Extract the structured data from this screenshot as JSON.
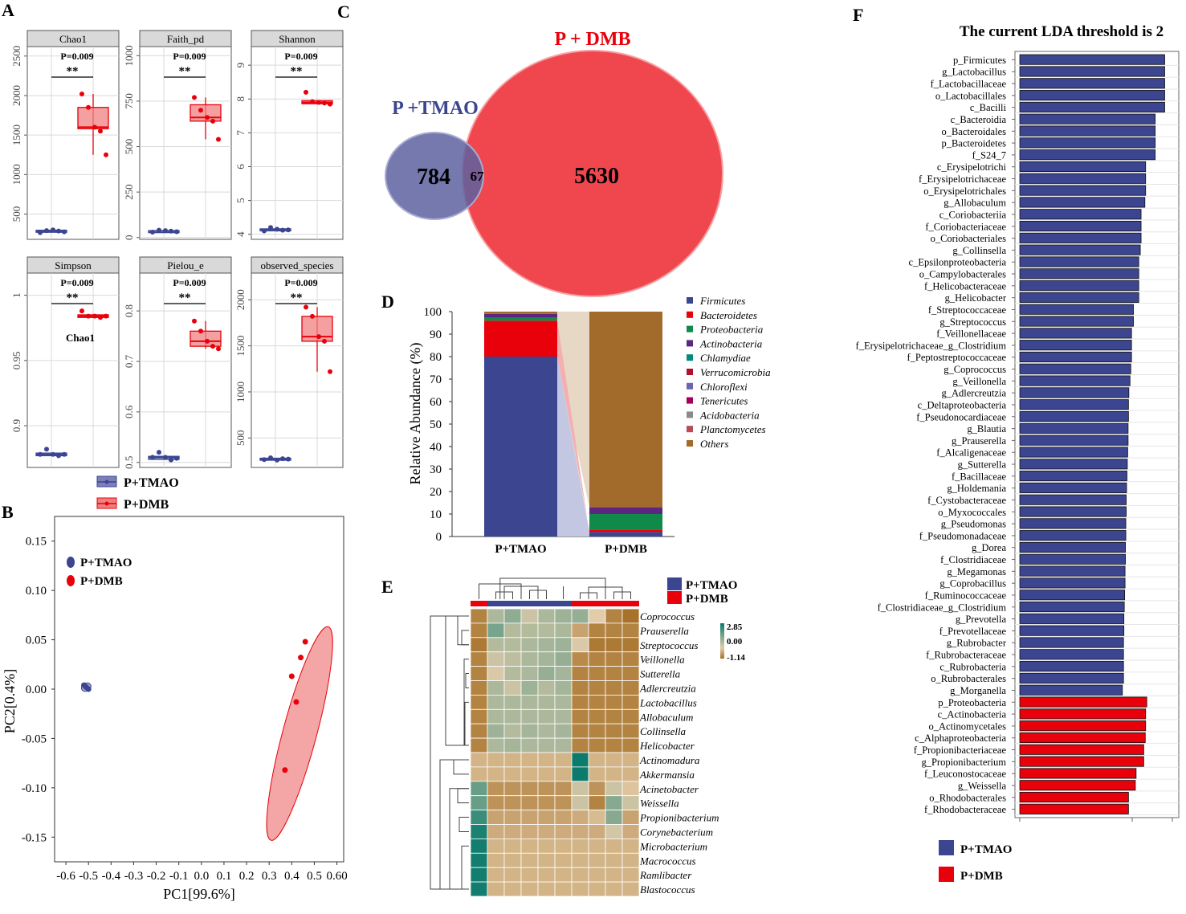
{
  "colors": {
    "tmao": "#3b4590",
    "dmb": "#e8000b",
    "dmb_light": "#f08080",
    "tmao_light": "#7b7fb8",
    "grid": "#d9d9d9",
    "strip": "#d9d9d9"
  },
  "panel_labels": {
    "a": "A",
    "b": "B",
    "c": "C",
    "d": "D",
    "e": "E",
    "f": "F"
  },
  "legend": {
    "tmao": "P+TMAO",
    "dmb": "P+DMB"
  },
  "chart_data": [
    {
      "id": "A",
      "type": "box",
      "groups": [
        "P+TMAO",
        "P+DMB"
      ],
      "significance": "**",
      "stray_label": "Chao1",
      "subplots": [
        {
          "title": "Chao1",
          "p": "P=0.009",
          "ylim": [
            180,
            2620
          ],
          "yticks": [
            500,
            1000,
            1500,
            2000,
            2500
          ],
          "tmao": {
            "points": [
              265,
              290,
              300,
              285,
              275
            ],
            "box": [
              270,
              285,
              295
            ]
          },
          "dmb": {
            "points": [
              2020,
              1850,
              1600,
              1550,
              1250
            ],
            "box": [
              1580,
              1600,
              1850
            ],
            "whisker": [
              1250,
              2020
            ]
          }
        },
        {
          "title": "Faith_pd",
          "p": "P=0.009",
          "ylim": [
            -10,
            1050
          ],
          "yticks": [
            0,
            250,
            500,
            750,
            1000
          ],
          "tmao": {
            "points": [
              30,
              40,
              38,
              35,
              32
            ],
            "box": [
              32,
              36,
              38
            ]
          },
          "dmb": {
            "points": [
              770,
              700,
              660,
              640,
              540
            ],
            "box": [
              640,
              660,
              730
            ],
            "whisker": [
              540,
              770
            ]
          }
        },
        {
          "title": "Shannon",
          "p": "P=0.009",
          "ylim": [
            3.85,
            9.55
          ],
          "yticks": [
            4,
            5,
            6,
            7,
            8,
            9
          ],
          "tmao": {
            "points": [
              4.1,
              4.2,
              4.15,
              4.12,
              4.13
            ],
            "box": [
              4.12,
              4.14,
              4.16
            ]
          },
          "dmb": {
            "points": [
              8.2,
              7.92,
              7.9,
              7.88,
              7.85
            ],
            "box": [
              7.86,
              7.9,
              7.95
            ]
          }
        },
        {
          "title": "Simpson",
          "p": "P=0.009",
          "ylim": [
            0.868,
            1.017
          ],
          "yticks": [
            0.9,
            0.95,
            1.0
          ],
          "tmao": {
            "points": [
              0.878,
              0.882,
              0.878,
              0.877,
              0.878
            ],
            "box": [
              0.877,
              0.878,
              0.879
            ]
          },
          "dmb": {
            "points": [
              0.988,
              0.984,
              0.984,
              0.983,
              0.984
            ],
            "box": [
              0.983,
              0.984,
              0.985
            ]
          }
        },
        {
          "title": "Pielou_e",
          "p": "P=0.009",
          "ylim": [
            0.49,
            0.875
          ],
          "yticks": [
            0.5,
            0.6,
            0.7,
            0.8
          ],
          "tmao": {
            "points": [
              0.51,
              0.52,
              0.51,
              0.505,
              0.508
            ],
            "box": [
              0.506,
              0.51,
              0.512
            ]
          },
          "dmb": {
            "points": [
              0.78,
              0.76,
              0.74,
              0.73,
              0.725
            ],
            "box": [
              0.73,
              0.74,
              0.76
            ],
            "whisker": [
              0.725,
              0.78
            ]
          }
        },
        {
          "title": "observed_species",
          "p": "P=0.009",
          "ylim": [
            180,
            2290
          ],
          "yticks": [
            500,
            1000,
            1500,
            2000
          ],
          "tmao": {
            "points": [
              265,
              285,
              260,
              275,
              270
            ],
            "box": [
              262,
              270,
              280
            ]
          },
          "dmb": {
            "points": [
              1920,
              1820,
              1600,
              1550,
              1220
            ],
            "box": [
              1550,
              1600,
              1820
            ],
            "whisker": [
              1220,
              1920
            ]
          }
        }
      ]
    },
    {
      "id": "B",
      "type": "scatter",
      "xlabel": "PC1[99.6%]",
      "ylabel": "PC2[0.4%]",
      "xlim": [
        -0.65,
        0.63
      ],
      "ylim": [
        -0.175,
        0.175
      ],
      "xticks": [
        -0.6,
        -0.5,
        -0.4,
        -0.3,
        -0.2,
        -0.1,
        0.0,
        0.1,
        0.2,
        0.3,
        0.4,
        0.5,
        0.6
      ],
      "xtick_labels": [
        "-0.6",
        "-0.5",
        "-0.4",
        "-0.3",
        "-0.2",
        "-0.1",
        "0.0",
        "0.1",
        "0.2",
        "0.3",
        "0.4",
        "0.5",
        "0.60"
      ],
      "yticks": [
        0.15,
        0.1,
        0.05,
        0.0,
        -0.05,
        -0.1,
        -0.15
      ],
      "ytick_labels": [
        "0.15",
        "0.10",
        "0.05",
        "0.00",
        "-0.05",
        "-0.10",
        "-0.15"
      ],
      "series": [
        {
          "name": "P+TMAO",
          "x": [
            -0.52,
            -0.51,
            -0.5
          ],
          "y": [
            0.004,
            0.002,
            0.0
          ]
        },
        {
          "name": "P+DMB",
          "x": [
            0.37,
            0.4,
            0.42,
            0.44,
            0.46
          ],
          "y": [
            -0.082,
            0.013,
            -0.013,
            0.032,
            0.048
          ]
        }
      ],
      "ellipses": [
        {
          "group": "P+TMAO",
          "cx": -0.51,
          "cy": 0.002,
          "rx": 0.022,
          "ry": 0.004,
          "angle_deg": -30
        },
        {
          "group": "P+DMB",
          "cx": 0.435,
          "cy": -0.045,
          "rx": 0.075,
          "ry": 0.112,
          "angle_deg": 15
        }
      ]
    },
    {
      "id": "C",
      "type": "venn",
      "sets": [
        {
          "name": "P +TMAO",
          "unique": "784"
        },
        {
          "name": "P + DMB",
          "unique": "5630"
        }
      ],
      "overlap": "67"
    },
    {
      "id": "D",
      "type": "stacked-bar",
      "ylabel": "Relative Abundance (%)",
      "ylim": [
        0,
        100
      ],
      "yticks": [
        0,
        10,
        20,
        30,
        40,
        50,
        60,
        70,
        80,
        90,
        100
      ],
      "categories": [
        "P+TMAO",
        "P+DMB"
      ],
      "series": [
        {
          "name": "Firmicutes",
          "color": "#3b4590",
          "values": [
            80,
            2
          ]
        },
        {
          "name": "Bacteroidetes",
          "color": "#e8000b",
          "values": [
            16,
            1
          ]
        },
        {
          "name": "Proteobacteria",
          "color": "#0f8a48",
          "values": [
            1.5,
            7
          ]
        },
        {
          "name": "Actinobacteria",
          "color": "#5c2680",
          "values": [
            1.5,
            3
          ]
        },
        {
          "name": "Chlamydiae",
          "color": "#008a80",
          "values": [
            0,
            0
          ]
        },
        {
          "name": "Verrucomicrobia",
          "color": "#b20f2f",
          "values": [
            0,
            0
          ]
        },
        {
          "name": "Chloroflexi",
          "color": "#6b66b0",
          "values": [
            0,
            0
          ]
        },
        {
          "name": "Tenericutes",
          "color": "#a3005b",
          "values": [
            0,
            0
          ]
        },
        {
          "name": "Acidobacteria",
          "color": "#8a8a8a",
          "values": [
            0,
            0
          ]
        },
        {
          "name": "Planctomycetes",
          "color": "#b84a5a",
          "values": [
            0,
            0
          ]
        },
        {
          "name": "Others",
          "color": "#a36b2b",
          "values": [
            1,
            87
          ]
        }
      ]
    },
    {
      "id": "E",
      "type": "heatmap",
      "scale_labels": [
        "2.85",
        "0.00",
        "-1.14"
      ],
      "columns": 10,
      "column_groups": [
        "P+DMB",
        "P+TMAO",
        "P+TMAO",
        "P+TMAO",
        "P+TMAO",
        "P+TMAO",
        "P+DMB",
        "P+DMB",
        "P+DMB",
        "P+DMB"
      ],
      "rows": [
        "Coprococcus",
        "Prauserella",
        "Streptococcus",
        "Veillonella",
        "Sutterella",
        "Adlercreutzia",
        "Lactobacillus",
        "Allobaculum",
        "Collinsella",
        "Helicobacter",
        "Actinomadura",
        "Akkermansia",
        "Acinetobacter",
        "Weissella",
        "Propionibacterium",
        "Corynebacterium",
        "Microbacterium",
        "Macrococcus",
        "Ramlibacter",
        "Blastococcus"
      ],
      "values": [
        [
          -0.9,
          0.7,
          1.1,
          0.3,
          0.7,
          0.9,
          1.0,
          0.0,
          -0.9,
          -1.1
        ],
        [
          -0.9,
          1.4,
          0.6,
          0.6,
          0.6,
          0.7,
          -0.5,
          -0.9,
          -0.9,
          -0.9
        ],
        [
          -1.0,
          0.6,
          0.6,
          0.7,
          0.8,
          0.9,
          0.1,
          -1.0,
          -1.0,
          -1.0
        ],
        [
          -0.9,
          0.3,
          0.5,
          0.7,
          0.8,
          1.0,
          -0.8,
          -0.9,
          -0.9,
          -0.9
        ],
        [
          -0.9,
          0.1,
          0.6,
          0.7,
          1.0,
          0.8,
          -0.9,
          -0.9,
          -0.9,
          -0.9
        ],
        [
          -0.9,
          0.7,
          0.3,
          0.9,
          0.6,
          0.8,
          -0.9,
          -0.9,
          -0.9,
          -0.9
        ],
        [
          -0.9,
          0.7,
          0.7,
          0.7,
          0.7,
          0.7,
          -0.9,
          -0.9,
          -0.9,
          -0.9
        ],
        [
          -0.9,
          0.7,
          0.7,
          0.7,
          0.7,
          0.7,
          -0.9,
          -0.9,
          -0.9,
          -0.9
        ],
        [
          -0.9,
          0.9,
          0.6,
          0.8,
          0.7,
          0.8,
          -0.9,
          -0.9,
          -0.9,
          -0.9
        ],
        [
          -0.9,
          0.7,
          0.8,
          0.7,
          0.7,
          0.7,
          -0.9,
          -0.9,
          -0.9,
          -0.9
        ],
        [
          -0.3,
          -0.3,
          -0.3,
          -0.3,
          -0.3,
          -0.3,
          2.8,
          -0.3,
          -0.3,
          -0.3
        ],
        [
          -0.3,
          -0.3,
          -0.3,
          -0.3,
          -0.3,
          -0.3,
          2.8,
          -0.3,
          -0.3,
          -0.3
        ],
        [
          1.6,
          -0.7,
          -0.7,
          -0.7,
          -0.7,
          -0.7,
          0.3,
          -0.7,
          0.3,
          -0.1
        ],
        [
          1.6,
          -0.7,
          -0.7,
          -0.7,
          -0.7,
          -0.7,
          0.3,
          -0.9,
          1.2,
          0.3
        ],
        [
          2.2,
          -0.5,
          -0.5,
          -0.5,
          -0.5,
          -0.5,
          -0.4,
          -0.2,
          1.2,
          -0.5
        ],
        [
          2.6,
          -0.4,
          -0.4,
          -0.4,
          -0.4,
          -0.4,
          -0.4,
          -0.4,
          0.2,
          -0.4
        ],
        [
          2.7,
          -0.3,
          -0.3,
          -0.3,
          -0.3,
          -0.3,
          -0.3,
          -0.3,
          -0.3,
          -0.3
        ],
        [
          2.7,
          -0.3,
          -0.3,
          -0.3,
          -0.3,
          -0.3,
          -0.3,
          -0.3,
          -0.3,
          -0.3
        ],
        [
          2.7,
          -0.3,
          -0.3,
          -0.3,
          -0.3,
          -0.3,
          -0.3,
          -0.3,
          -0.3,
          -0.3
        ],
        [
          2.7,
          -0.3,
          -0.3,
          -0.3,
          -0.3,
          -0.3,
          -0.3,
          -0.3,
          -0.3,
          -0.3
        ]
      ]
    },
    {
      "id": "F",
      "type": "bar",
      "orientation": "horizontal",
      "title": "The current  LDA threshold is 2",
      "xlim": [
        2,
        6
      ],
      "categories": [
        "p_Firmicutes",
        "g_Lactobacillus",
        "f_Lactobacillaceae",
        "o_Lactobacillales",
        "c_Bacilli",
        "c_Bacteroidia",
        "o_Bacteroidales",
        "p_Bacteroidetes",
        "f_S24_7",
        "c_Erysipelotrichi",
        "f_Erysipelotrichaceae",
        "o_Erysipelotrichales",
        "g_Allobaculum",
        "c_Coriobacteriia",
        "f_Coriobacteriaceae",
        "o_Coriobacteriales",
        "g_Collinsella",
        "c_Epsilonproteobacteria",
        "o_Campylobacterales",
        "f_Helicobacteraceae",
        "g_Helicobacter",
        "f_Streptococcaceae",
        "g_Streptococcus",
        "f_Veillonellaceae",
        "f_Erysipelotrichaceae_g_Clostridium",
        "f_Peptostreptococcaceae",
        "g_Coprococcus",
        "g_Veillonella",
        "g_Adlercreutzia",
        "c_Deltaproteobacteria",
        "f_Pseudonocardiaceae",
        "g_Blautia",
        "g_Prauserella",
        "f_Alcaligenaceae",
        "g_Sutterella",
        "f_Bacillaceae",
        "g_Holdemania",
        "f_Cystobacteraceae",
        "o_Myxococcales",
        "g_Pseudomonas",
        "f_Pseudomonadaceae",
        "g_Dorea",
        "f_Clostridiaceae",
        "g_Megamonas",
        "g_Coprobacillus",
        "f_Ruminococcaceae",
        "f_Clostridiaceae_g_Clostridium",
        "g_Prevotella",
        "f_Prevotellaceae",
        "g_Rubrobacter",
        "f_Rubrobacteraceae",
        "c_Rubrobacteria",
        "o_Rubrobacterales",
        "g_Morganella",
        "p_Proteobacteria",
        "c_Actinobacteria",
        "o_Actinomycetales",
        "c_Alphaproteobacteria",
        "f_Propionibacteriaceae",
        "g_Propionibacterium",
        "f_Leuconostocaceae",
        "g_Weissella",
        "o_Rhodobacterales",
        "f_Rhodobacteraceae"
      ],
      "values": [
        5.8,
        5.8,
        5.8,
        5.8,
        5.8,
        5.55,
        5.55,
        5.55,
        5.55,
        5.3,
        5.3,
        5.3,
        5.28,
        5.18,
        5.18,
        5.18,
        5.16,
        5.12,
        5.12,
        5.12,
        5.12,
        4.98,
        4.98,
        4.93,
        4.93,
        4.93,
        4.91,
        4.89,
        4.86,
        4.85,
        4.85,
        4.84,
        4.84,
        4.83,
        4.82,
        4.81,
        4.8,
        4.79,
        4.79,
        4.78,
        4.78,
        4.77,
        4.77,
        4.76,
        4.76,
        4.75,
        4.74,
        4.73,
        4.73,
        4.72,
        4.72,
        4.72,
        4.72,
        4.69,
        5.33,
        5.3,
        5.3,
        5.29,
        5.25,
        5.25,
        5.05,
        5.03,
        4.85,
        4.85
      ],
      "groups": [
        "P+TMAO",
        "P+TMAO",
        "P+TMAO",
        "P+TMAO",
        "P+TMAO",
        "P+TMAO",
        "P+TMAO",
        "P+TMAO",
        "P+TMAO",
        "P+TMAO",
        "P+TMAO",
        "P+TMAO",
        "P+TMAO",
        "P+TMAO",
        "P+TMAO",
        "P+TMAO",
        "P+TMAO",
        "P+TMAO",
        "P+TMAO",
        "P+TMAO",
        "P+TMAO",
        "P+TMAO",
        "P+TMAO",
        "P+TMAO",
        "P+TMAO",
        "P+TMAO",
        "P+TMAO",
        "P+TMAO",
        "P+TMAO",
        "P+TMAO",
        "P+TMAO",
        "P+TMAO",
        "P+TMAO",
        "P+TMAO",
        "P+TMAO",
        "P+TMAO",
        "P+TMAO",
        "P+TMAO",
        "P+TMAO",
        "P+TMAO",
        "P+TMAO",
        "P+TMAO",
        "P+TMAO",
        "P+TMAO",
        "P+TMAO",
        "P+TMAO",
        "P+TMAO",
        "P+TMAO",
        "P+TMAO",
        "P+TMAO",
        "P+TMAO",
        "P+TMAO",
        "P+TMAO",
        "P+TMAO",
        "P+DMB",
        "P+DMB",
        "P+DMB",
        "P+DMB",
        "P+DMB",
        "P+DMB",
        "P+DMB",
        "P+DMB",
        "P+DMB",
        "P+DMB"
      ]
    }
  ]
}
